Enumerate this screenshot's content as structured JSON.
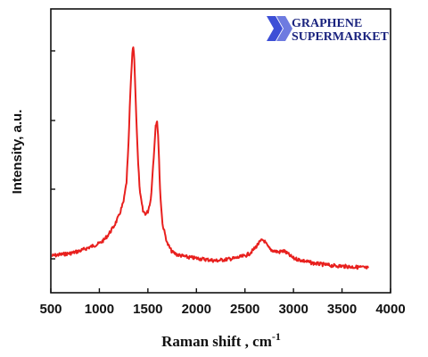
{
  "chart_data": {
    "type": "line",
    "title": "",
    "xlabel": "Raman shift , cm",
    "xlabel_superscript": "-1",
    "ylabel": "Intensity, a.u.",
    "xlim": [
      500,
      4000
    ],
    "ylim": [
      0,
      1
    ],
    "x_ticks": [
      "500",
      "1000",
      "1500",
      "2000",
      "2500",
      "3000",
      "3500",
      "4000"
    ],
    "y_tick_labels": false,
    "grid": false,
    "line_color": "#e8201e",
    "series": [
      {
        "x": [
          510,
          600,
          700,
          800,
          900,
          1000,
          1050,
          1100,
          1150,
          1200,
          1250,
          1280,
          1300,
          1320,
          1340,
          1350,
          1360,
          1380,
          1400,
          1420,
          1450,
          1480,
          1500,
          1530,
          1560,
          1580,
          1595,
          1610,
          1625,
          1650,
          1700,
          1750,
          1800,
          1900,
          2000,
          2100,
          2200,
          2300,
          2400,
          2500,
          2550,
          2600,
          2640,
          2680,
          2700,
          2730,
          2760,
          2800,
          2850,
          2900,
          2950,
          3000,
          3100,
          3200,
          3300,
          3400,
          3500,
          3600,
          3700,
          3770
        ],
        "values": [
          0.15,
          0.155,
          0.16,
          0.17,
          0.185,
          0.2,
          0.215,
          0.24,
          0.27,
          0.31,
          0.37,
          0.45,
          0.6,
          0.82,
          0.97,
          1.0,
          0.95,
          0.72,
          0.52,
          0.4,
          0.33,
          0.32,
          0.33,
          0.38,
          0.55,
          0.68,
          0.7,
          0.6,
          0.42,
          0.28,
          0.2,
          0.165,
          0.155,
          0.145,
          0.14,
          0.135,
          0.13,
          0.135,
          0.14,
          0.15,
          0.16,
          0.18,
          0.2,
          0.215,
          0.21,
          0.19,
          0.175,
          0.17,
          0.165,
          0.17,
          0.155,
          0.14,
          0.13,
          0.12,
          0.115,
          0.11,
          0.108,
          0.105,
          0.103,
          0.1
        ]
      }
    ]
  },
  "logo": {
    "line1": "GRAPHENE",
    "line2": "SUPERMARKET",
    "color": "#1a237e",
    "chevron_color": "#3d4fd6"
  }
}
